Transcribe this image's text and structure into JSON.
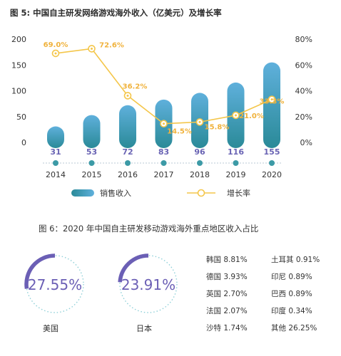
{
  "colors": {
    "bar_top": "#5ba8d6",
    "bar_bottom": "#2f8f9e",
    "line": "#f4c64a",
    "label_purple": "#6a64b4",
    "growth_text": "#f0b23c",
    "ring": "#6b5fb5",
    "ring_dots": "#8fd0d8"
  },
  "chart_data": [
    {
      "type": "bar",
      "title": "图 5: 中国自主研发网络游戏海外收入（亿美元）及增长率",
      "categories": [
        "2014",
        "2015",
        "2016",
        "2017",
        "2018",
        "2019",
        "2020"
      ],
      "series": [
        {
          "name": "销售收入",
          "type": "bar",
          "axis": "left",
          "values": [
            31,
            53,
            72,
            83,
            96,
            116,
            155
          ]
        },
        {
          "name": "增长率",
          "type": "line",
          "axis": "right",
          "values": [
            69.0,
            72.6,
            36.2,
            14.5,
            15.8,
            21.0,
            33.3
          ],
          "labels": [
            "69.0%",
            "72.6%",
            "36.2%",
            "14.5%",
            "15.8%",
            "21.0%",
            "33.3%"
          ]
        }
      ],
      "bar_labels": [
        "31",
        "53",
        "72",
        "83",
        "96",
        "116",
        "155"
      ],
      "left_axis": {
        "ylim": [
          0,
          200
        ],
        "ticks": [
          "0",
          "50",
          "100",
          "150",
          "200"
        ]
      },
      "right_axis": {
        "ylim": [
          0,
          80
        ],
        "ticks": [
          "0%",
          "20%",
          "40%",
          "60%",
          "80%"
        ]
      },
      "legend": {
        "position": "bottom",
        "entries": [
          "销售收入",
          "增长率"
        ]
      }
    },
    {
      "type": "pie",
      "title": "图 6：2020 年中国自主研发移动游戏海外重点地区收入占比",
      "rings": [
        {
          "name": "美国",
          "value": 27.55,
          "label": "27.55%"
        },
        {
          "name": "日本",
          "value": 23.91,
          "label": "23.91%"
        }
      ],
      "others": [
        {
          "name": "韩国",
          "label": "8.81%"
        },
        {
          "name": "土耳其",
          "label": "0.91%"
        },
        {
          "name": "德国",
          "label": "3.93%"
        },
        {
          "name": "印尼",
          "label": "0.89%"
        },
        {
          "name": "英国",
          "label": "2.70%"
        },
        {
          "name": "巴西",
          "label": "0.89%"
        },
        {
          "name": "法国",
          "label": "2.07%"
        },
        {
          "name": "印度",
          "label": "0.34%"
        },
        {
          "name": "沙特",
          "label": "1.74%"
        },
        {
          "name": "其他",
          "label": "26.25%"
        }
      ]
    }
  ]
}
